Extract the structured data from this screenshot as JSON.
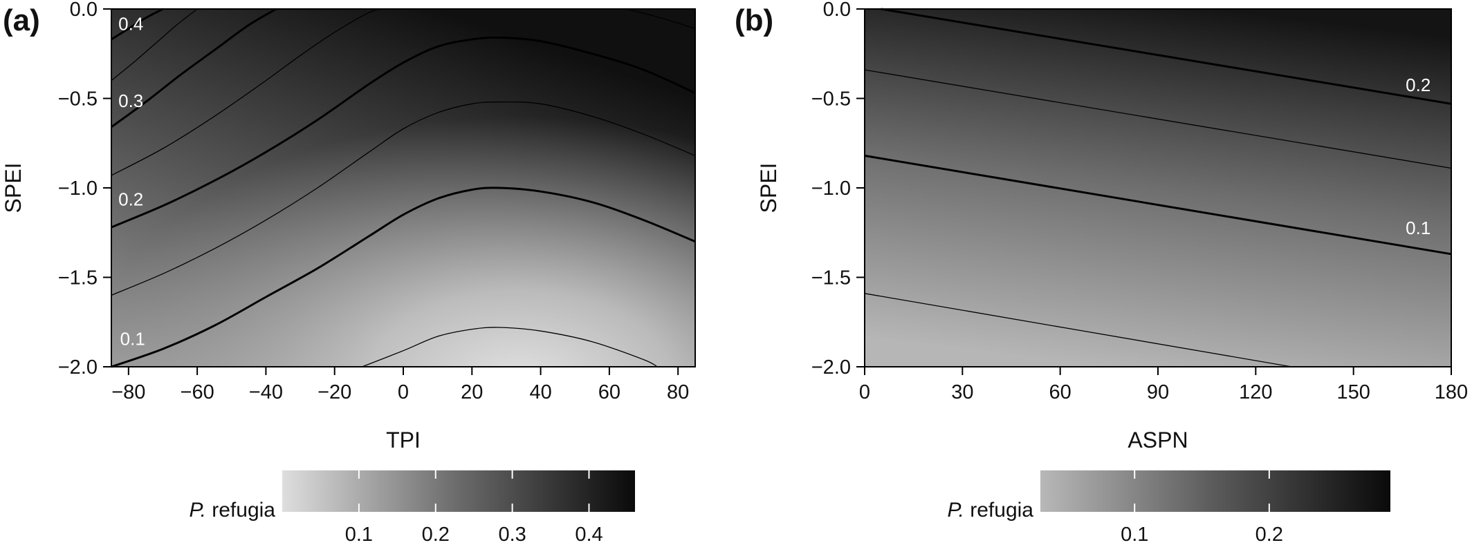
{
  "chart_data": [
    {
      "panel_label": "(a)",
      "type": "heatmap",
      "subtype": "filled contour",
      "xlabel": "TPI",
      "ylabel": "SPEI",
      "xlim": [
        -85,
        85
      ],
      "ylim": [
        -2.0,
        0.0
      ],
      "xticks": [
        -80,
        -60,
        -40,
        -20,
        0,
        20,
        40,
        60,
        80
      ],
      "xtick_labels": [
        "−80",
        "−60",
        "−40",
        "−20",
        "0",
        "20",
        "40",
        "60",
        "80"
      ],
      "yticks": [
        0.0,
        -0.5,
        -1.0,
        -1.5,
        -2.0
      ],
      "ytick_labels": [
        "0.0",
        "−0.5",
        "−1.0",
        "−1.5",
        "−2.0"
      ],
      "contours": [
        {
          "level": 0.05,
          "weight": "thin",
          "labeled": false,
          "x": [
            -12,
            0,
            10,
            20,
            28,
            40,
            55,
            70,
            74
          ],
          "y": [
            -2.0,
            -1.91,
            -1.83,
            -1.79,
            -1.78,
            -1.8,
            -1.86,
            -1.96,
            -2.0
          ]
        },
        {
          "level": 0.1,
          "weight": "thick",
          "labeled": true,
          "label": "0.1",
          "x": [
            -85,
            -70,
            -55,
            -40,
            -25,
            -10,
            0,
            10,
            20,
            28,
            40,
            55,
            70,
            85
          ],
          "y": [
            -2.0,
            -1.9,
            -1.77,
            -1.61,
            -1.45,
            -1.27,
            -1.15,
            -1.06,
            -1.01,
            -1.0,
            -1.02,
            -1.08,
            -1.18,
            -1.3
          ]
        },
        {
          "level": 0.15,
          "weight": "thin",
          "labeled": false,
          "x": [
            -85,
            -70,
            -55,
            -40,
            -25,
            -10,
            0,
            10,
            20,
            28,
            40,
            55,
            70,
            85
          ],
          "y": [
            -1.6,
            -1.48,
            -1.34,
            -1.18,
            -1.0,
            -0.8,
            -0.67,
            -0.58,
            -0.53,
            -0.52,
            -0.53,
            -0.6,
            -0.7,
            -0.82
          ]
        },
        {
          "level": 0.2,
          "weight": "thick",
          "labeled": true,
          "label": "0.2",
          "x": [
            -85,
            -70,
            -55,
            -40,
            -25,
            -10,
            0,
            10,
            20,
            28,
            40,
            55,
            70,
            85
          ],
          "y": [
            -1.22,
            -1.1,
            -0.96,
            -0.8,
            -0.62,
            -0.42,
            -0.3,
            -0.21,
            -0.17,
            -0.16,
            -0.18,
            -0.25,
            -0.34,
            -0.47
          ]
        },
        {
          "level": 0.25,
          "weight": "thin",
          "labeled": false,
          "x": [
            -85,
            -70,
            -55,
            -40,
            -30,
            -20,
            -10,
            -6
          ],
          "y": [
            -0.93,
            -0.78,
            -0.6,
            -0.4,
            -0.26,
            -0.13,
            -0.02,
            0.0
          ]
        },
        {
          "level": 0.3,
          "weight": "thick",
          "labeled": true,
          "label": "0.3",
          "x": [
            -85,
            -75,
            -65,
            -55,
            -45,
            -37
          ],
          "y": [
            -0.66,
            -0.52,
            -0.37,
            -0.23,
            -0.09,
            0.0
          ]
        },
        {
          "level": 0.35,
          "weight": "thin",
          "labeled": false,
          "x": [
            -85,
            -78,
            -72,
            -66,
            -60
          ],
          "y": [
            -0.4,
            -0.29,
            -0.19,
            -0.09,
            0.0
          ]
        },
        {
          "level": 0.4,
          "weight": "thick",
          "labeled": true,
          "label": "0.4",
          "x": [
            -85,
            -80,
            -75,
            -70
          ],
          "y": [
            -0.17,
            -0.11,
            -0.05,
            0.0
          ]
        },
        {
          "level": 0.25,
          "weight": "thin",
          "labeled": false,
          "x": [
            65,
            75,
            85
          ],
          "y": [
            0.0,
            -0.05,
            -0.11
          ]
        }
      ],
      "colorbar": {
        "label_italic": "P.",
        "label_rest": " refugia",
        "range": [
          0.0,
          0.46
        ],
        "ticks": [
          0.1,
          0.2,
          0.3,
          0.4
        ],
        "tick_labels": [
          "0.1",
          "0.2",
          "0.3",
          "0.4"
        ]
      }
    },
    {
      "panel_label": "(b)",
      "type": "heatmap",
      "subtype": "filled contour",
      "xlabel": "ASPN",
      "ylabel": "SPEI",
      "xlim": [
        0,
        180
      ],
      "ylim": [
        -2.0,
        0.0
      ],
      "xticks": [
        0,
        30,
        60,
        90,
        120,
        150,
        180
      ],
      "xtick_labels": [
        "0",
        "30",
        "60",
        "90",
        "120",
        "150",
        "180"
      ],
      "yticks": [
        0.0,
        -0.5,
        -1.0,
        -1.5,
        -2.0
      ],
      "ytick_labels": [
        "0.0",
        "−0.5",
        "−1.0",
        "−1.5",
        "−2.0"
      ],
      "contours": [
        {
          "level": 0.2,
          "weight": "thick",
          "labeled": true,
          "label": "0.2",
          "x": [
            5,
            180
          ],
          "y": [
            0.0,
            -0.53
          ]
        },
        {
          "level": 0.15,
          "weight": "thin",
          "labeled": false,
          "x": [
            0,
            180
          ],
          "y": [
            -0.34,
            -0.89
          ]
        },
        {
          "level": 0.1,
          "weight": "thick",
          "labeled": true,
          "label": "0.1",
          "x": [
            0,
            180
          ],
          "y": [
            -0.82,
            -1.37
          ]
        },
        {
          "level": 0.05,
          "weight": "thin",
          "labeled": false,
          "x": [
            0,
            131
          ],
          "y": [
            -1.59,
            -2.0
          ]
        }
      ],
      "colorbar": {
        "label_italic": "P.",
        "label_rest": " refugia",
        "range": [
          0.03,
          0.29
        ],
        "ticks": [
          0.1,
          0.2
        ],
        "tick_labels": [
          "0.1",
          "0.2"
        ]
      }
    }
  ]
}
